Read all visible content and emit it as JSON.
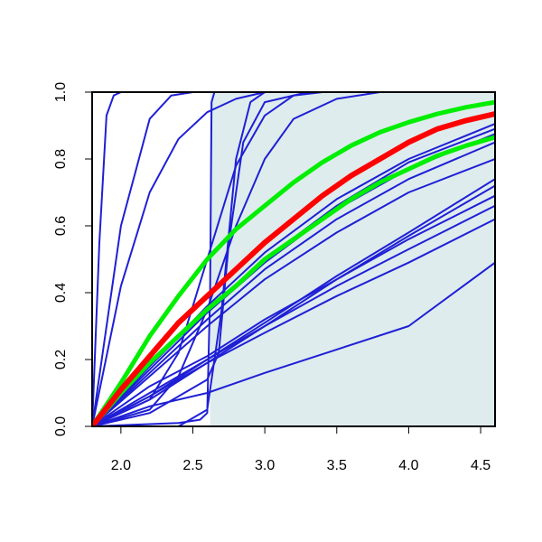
{
  "chart_data": {
    "type": "line",
    "title": "",
    "xlabel": "",
    "ylabel": "",
    "xlim": [
      1.8,
      4.6
    ],
    "ylim": [
      0.0,
      1.0
    ],
    "x_ticks": [
      2.0,
      2.5,
      3.0,
      3.5,
      4.0,
      4.5
    ],
    "x_tick_labels": [
      "2.0",
      "2.5",
      "3.0",
      "3.5",
      "4.0",
      "4.5"
    ],
    "y_ticks": [
      0.0,
      0.2,
      0.4,
      0.6,
      0.8,
      1.0
    ],
    "y_tick_labels": [
      "0.0",
      "0.2",
      "0.4",
      "0.6",
      "0.8",
      "1.0"
    ],
    "grid": false,
    "legend": "none",
    "shaded_region": {
      "x_from": 2.62,
      "x_to": 4.6,
      "color": "#deeced"
    },
    "colors": {
      "blue": "#1f1fd6",
      "red": "#ff0000",
      "green": "#00ee00",
      "axis": "#000000"
    },
    "series": [
      {
        "color": "#1f1fd6",
        "width": 2,
        "points": [
          [
            1.8,
            0.0
          ],
          [
            1.85,
            0.55
          ],
          [
            1.9,
            0.93
          ],
          [
            1.95,
            0.99
          ],
          [
            2.0,
            1.0
          ],
          [
            4.6,
            1.0
          ]
        ]
      },
      {
        "color": "#1f1fd6",
        "width": 2,
        "points": [
          [
            1.8,
            0.0
          ],
          [
            2.0,
            0.6
          ],
          [
            2.2,
            0.92
          ],
          [
            2.35,
            0.99
          ],
          [
            2.5,
            1.0
          ],
          [
            4.6,
            1.0
          ]
        ]
      },
      {
        "color": "#1f1fd6",
        "width": 2,
        "points": [
          [
            1.8,
            0.0
          ],
          [
            2.0,
            0.42
          ],
          [
            2.2,
            0.7
          ],
          [
            2.4,
            0.86
          ],
          [
            2.6,
            0.94
          ],
          [
            2.8,
            0.98
          ],
          [
            3.0,
            1.0
          ],
          [
            4.6,
            1.0
          ]
        ]
      },
      {
        "color": "#1f1fd6",
        "width": 2,
        "points": [
          [
            1.8,
            0.0
          ],
          [
            2.2,
            0.08
          ],
          [
            2.4,
            0.22
          ],
          [
            2.6,
            0.5
          ],
          [
            2.8,
            0.78
          ],
          [
            3.0,
            0.93
          ],
          [
            3.2,
            0.99
          ],
          [
            3.4,
            1.0
          ],
          [
            4.6,
            1.0
          ]
        ]
      },
      {
        "color": "#1f1fd6",
        "width": 2,
        "points": [
          [
            1.8,
            0.0
          ],
          [
            2.2,
            0.05
          ],
          [
            2.4,
            0.15
          ],
          [
            2.6,
            0.35
          ],
          [
            2.8,
            0.6
          ],
          [
            3.0,
            0.8
          ],
          [
            3.2,
            0.92
          ],
          [
            3.5,
            0.98
          ],
          [
            3.8,
            1.0
          ],
          [
            4.6,
            1.0
          ]
        ]
      },
      {
        "color": "#1f1fd6",
        "width": 2,
        "points": [
          [
            1.8,
            0.0
          ],
          [
            2.4,
            0.01
          ],
          [
            2.55,
            0.02
          ],
          [
            2.6,
            0.04
          ],
          [
            2.62,
            0.4
          ],
          [
            2.63,
            0.97
          ],
          [
            2.65,
            1.0
          ],
          [
            4.6,
            1.0
          ]
        ]
      },
      {
        "color": "#1f1fd6",
        "width": 2,
        "points": [
          [
            1.8,
            0.0
          ],
          [
            2.4,
            0.0
          ],
          [
            2.6,
            0.05
          ],
          [
            2.7,
            0.35
          ],
          [
            2.8,
            0.8
          ],
          [
            2.9,
            0.97
          ],
          [
            3.0,
            1.0
          ],
          [
            4.6,
            1.0
          ]
        ]
      },
      {
        "color": "#1f1fd6",
        "width": 2,
        "points": [
          [
            1.8,
            0.0
          ],
          [
            2.2,
            0.04
          ],
          [
            2.6,
            0.14
          ],
          [
            2.68,
            0.22
          ],
          [
            2.75,
            0.55
          ],
          [
            2.85,
            0.85
          ],
          [
            3.0,
            0.97
          ],
          [
            3.3,
            1.0
          ],
          [
            4.6,
            1.0
          ]
        ]
      },
      {
        "color": "#1f1fd6",
        "width": 2,
        "points": [
          [
            1.8,
            0.0
          ],
          [
            2.2,
            0.18
          ],
          [
            2.6,
            0.36
          ],
          [
            3.0,
            0.52
          ],
          [
            3.5,
            0.68
          ],
          [
            4.0,
            0.8
          ],
          [
            4.6,
            0.905
          ]
        ]
      },
      {
        "color": "#1f1fd6",
        "width": 2,
        "points": [
          [
            1.8,
            0.0
          ],
          [
            2.2,
            0.18
          ],
          [
            2.6,
            0.35
          ],
          [
            3.0,
            0.5
          ],
          [
            3.5,
            0.66
          ],
          [
            4.0,
            0.79
          ],
          [
            4.6,
            0.89
          ]
        ]
      },
      {
        "color": "#1f1fd6",
        "width": 2,
        "points": [
          [
            1.8,
            0.0
          ],
          [
            2.2,
            0.17
          ],
          [
            2.6,
            0.34
          ],
          [
            3.0,
            0.49
          ],
          [
            3.5,
            0.65
          ],
          [
            4.0,
            0.77
          ],
          [
            4.6,
            0.875
          ]
        ]
      },
      {
        "color": "#1f1fd6",
        "width": 2,
        "points": [
          [
            1.8,
            0.0
          ],
          [
            2.2,
            0.16
          ],
          [
            2.6,
            0.32
          ],
          [
            3.0,
            0.47
          ],
          [
            3.5,
            0.62
          ],
          [
            4.0,
            0.74
          ],
          [
            4.6,
            0.85
          ]
        ]
      },
      {
        "color": "#1f1fd6",
        "width": 2,
        "points": [
          [
            1.8,
            0.0
          ],
          [
            2.2,
            0.15
          ],
          [
            2.6,
            0.3
          ],
          [
            3.0,
            0.44
          ],
          [
            3.5,
            0.58
          ],
          [
            4.0,
            0.7
          ],
          [
            4.6,
            0.8
          ]
        ]
      },
      {
        "color": "#1f1fd6",
        "width": 2,
        "points": [
          [
            1.8,
            0.0
          ],
          [
            2.2,
            0.09
          ],
          [
            2.6,
            0.2
          ],
          [
            3.0,
            0.31
          ],
          [
            3.5,
            0.45
          ],
          [
            4.0,
            0.58
          ],
          [
            4.6,
            0.74
          ]
        ]
      },
      {
        "color": "#1f1fd6",
        "width": 2,
        "points": [
          [
            1.8,
            0.0
          ],
          [
            2.2,
            0.08
          ],
          [
            2.6,
            0.19
          ],
          [
            3.0,
            0.3
          ],
          [
            3.5,
            0.44
          ],
          [
            4.0,
            0.57
          ],
          [
            4.6,
            0.72
          ]
        ]
      },
      {
        "color": "#1f1fd6",
        "width": 2,
        "points": [
          [
            1.8,
            0.0
          ],
          [
            2.2,
            0.1
          ],
          [
            2.6,
            0.2
          ],
          [
            3.0,
            0.3
          ],
          [
            3.5,
            0.42
          ],
          [
            4.0,
            0.53
          ],
          [
            4.6,
            0.66
          ]
        ]
      },
      {
        "color": "#1f1fd6",
        "width": 2,
        "points": [
          [
            1.8,
            0.0
          ],
          [
            2.2,
            0.09
          ],
          [
            2.6,
            0.19
          ],
          [
            3.0,
            0.28
          ],
          [
            3.5,
            0.39
          ],
          [
            4.0,
            0.49
          ],
          [
            4.6,
            0.62
          ]
        ]
      },
      {
        "color": "#1f1fd6",
        "width": 2,
        "points": [
          [
            1.8,
            0.0
          ],
          [
            2.2,
            0.12
          ],
          [
            2.6,
            0.21
          ],
          [
            3.0,
            0.32
          ],
          [
            3.5,
            0.44
          ],
          [
            4.0,
            0.56
          ],
          [
            4.6,
            0.69
          ]
        ]
      },
      {
        "color": "#1f1fd6",
        "width": 2,
        "points": [
          [
            1.8,
            0.0
          ],
          [
            2.2,
            0.06
          ],
          [
            2.6,
            0.1
          ],
          [
            3.0,
            0.16
          ],
          [
            3.5,
            0.23
          ],
          [
            4.0,
            0.3
          ],
          [
            4.6,
            0.49
          ]
        ]
      },
      {
        "color": "#00ee00",
        "width": 5,
        "points": [
          [
            1.8,
            0.0
          ],
          [
            2.0,
            0.13
          ],
          [
            2.2,
            0.27
          ],
          [
            2.4,
            0.39
          ],
          [
            2.6,
            0.5
          ],
          [
            2.8,
            0.59
          ],
          [
            3.0,
            0.66
          ],
          [
            3.2,
            0.73
          ],
          [
            3.4,
            0.79
          ],
          [
            3.6,
            0.84
          ],
          [
            3.8,
            0.88
          ],
          [
            4.0,
            0.91
          ],
          [
            4.2,
            0.935
          ],
          [
            4.4,
            0.955
          ],
          [
            4.6,
            0.97
          ]
        ]
      },
      {
        "color": "#00ee00",
        "width": 5,
        "points": [
          [
            1.8,
            0.0
          ],
          [
            2.0,
            0.1
          ],
          [
            2.2,
            0.19
          ],
          [
            2.4,
            0.27
          ],
          [
            2.6,
            0.35
          ],
          [
            2.8,
            0.42
          ],
          [
            3.0,
            0.5
          ],
          [
            3.2,
            0.56
          ],
          [
            3.4,
            0.62
          ],
          [
            3.6,
            0.68
          ],
          [
            3.8,
            0.73
          ],
          [
            4.0,
            0.77
          ],
          [
            4.2,
            0.81
          ],
          [
            4.4,
            0.84
          ],
          [
            4.6,
            0.865
          ]
        ]
      },
      {
        "color": "#ff0000",
        "width": 6,
        "points": [
          [
            1.8,
            0.0
          ],
          [
            2.0,
            0.11
          ],
          [
            2.2,
            0.21
          ],
          [
            2.4,
            0.31
          ],
          [
            2.6,
            0.39
          ],
          [
            2.8,
            0.47
          ],
          [
            3.0,
            0.55
          ],
          [
            3.2,
            0.62
          ],
          [
            3.4,
            0.69
          ],
          [
            3.6,
            0.75
          ],
          [
            3.8,
            0.8
          ],
          [
            4.0,
            0.85
          ],
          [
            4.2,
            0.89
          ],
          [
            4.4,
            0.915
          ],
          [
            4.6,
            0.935
          ]
        ]
      }
    ]
  }
}
